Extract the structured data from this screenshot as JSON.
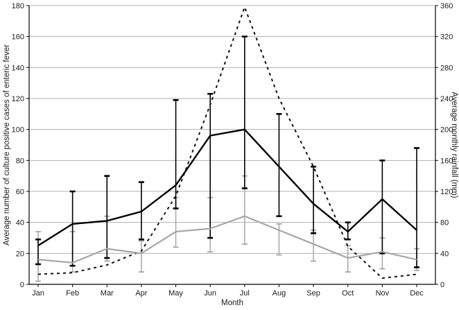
{
  "chart_data": {
    "type": "line",
    "title": "",
    "categories": [
      "Jan",
      "Feb",
      "Mar",
      "Apr",
      "May",
      "Jun",
      "Jul",
      "Aug",
      "Sep",
      "Oct",
      "Nov",
      "Dec"
    ],
    "xlabel": "Month",
    "ylabel_left": "Average number of culture positive cases of enteric fever",
    "ylabel_right": "Average monthly rainfall (mm)",
    "left_axis": {
      "min": 0,
      "max": 180,
      "step": 20
    },
    "right_axis": {
      "min": 0,
      "max": 360,
      "step": 40
    },
    "grid": "horizontal",
    "legend": "none",
    "series": [
      {
        "name": "culture-positive-cases-primary",
        "axis": "left",
        "style": "solid",
        "color": "#000000",
        "values": [
          25,
          39,
          41,
          47,
          64,
          96,
          100,
          76,
          52,
          34,
          55,
          35
        ],
        "err_low": [
          13,
          12,
          17,
          29,
          49,
          30,
          62,
          44,
          33,
          29,
          20,
          11
        ],
        "err_high": [
          29,
          60,
          70,
          66,
          119,
          123,
          160,
          110,
          76,
          40,
          80,
          88
        ]
      },
      {
        "name": "culture-positive-cases-secondary",
        "axis": "left",
        "style": "solid",
        "color": "#a6a6a6",
        "values": [
          16,
          14,
          23,
          20,
          34,
          36,
          44,
          35,
          26,
          17,
          21,
          16
        ],
        "err_low": [
          2,
          8,
          15,
          8,
          24,
          21,
          26,
          19,
          15,
          8,
          10,
          9
        ],
        "err_high": [
          34,
          34,
          44,
          28,
          56,
          56,
          70,
          39,
          35,
          25,
          30,
          23
        ]
      },
      {
        "name": "average-monthly-rainfall",
        "axis": "right",
        "style": "dashed",
        "color": "#111111",
        "values": [
          13,
          15,
          25,
          43,
          114,
          232,
          358,
          240,
          152,
          49,
          8,
          13
        ]
      }
    ],
    "colors": {
      "gridline": "#b0b0b0",
      "axis": "#000000"
    }
  }
}
